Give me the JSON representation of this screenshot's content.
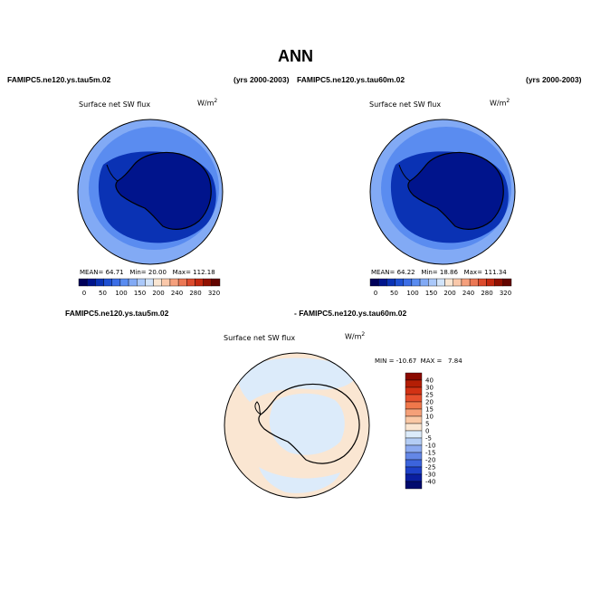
{
  "page": {
    "title": "ANN"
  },
  "panels": [
    {
      "case_left": "FAMIPC5.ne120.ys.tau5m.02",
      "case_right": "(yrs 2000-2003)",
      "subtitle": "Surface net SW flux",
      "units": "W/m",
      "units_exp": "2",
      "stats": {
        "mean_label": "MEAN=",
        "mean": "64.71",
        "min_label": "Min=",
        "min": "20.00",
        "max_label": "Max=",
        "max": "112.18"
      }
    },
    {
      "case_left": "FAMIPC5.ne120.ys.tau60m.02",
      "case_right": "(yrs 2000-2003)",
      "subtitle": "Surface net SW flux",
      "units": "W/m",
      "units_exp": "2",
      "stats": {
        "mean_label": "MEAN=",
        "mean": "64.22",
        "min_label": "Min=",
        "min": "18.86",
        "max_label": "Max=",
        "max": "111.34"
      }
    },
    {
      "case_left": "FAMIPC5.ne120.ys.tau5m.02",
      "case_right": "- FAMIPC5.ne120.ys.tau60m.02",
      "subtitle": "Surface net SW flux",
      "units": "W/m",
      "units_exp": "2",
      "minmax": "MIN = -10.67  MAX =   7.84"
    }
  ],
  "colorbar_abs": {
    "labels": [
      "0",
      "50",
      "100",
      "150",
      "200",
      "240",
      "280",
      "320"
    ],
    "colors": [
      "#00005a",
      "#00148c",
      "#0a32b4",
      "#1e50d2",
      "#3c6ee6",
      "#5a8cf0",
      "#82aaf5",
      "#aac8fa",
      "#d2e4fa",
      "#fae6d2",
      "#fac8aa",
      "#f5a07d",
      "#eb7855",
      "#dc4b2d",
      "#c3280f",
      "#911000",
      "#640500"
    ]
  },
  "colorbar_diff": {
    "labels": [
      "40",
      "30",
      "25",
      "20",
      "15",
      "10",
      "5",
      "0",
      "-5",
      "-10",
      "-15",
      "-20",
      "-25",
      "-30",
      "-40"
    ],
    "colors": [
      "#8b0a00",
      "#b41e05",
      "#d23214",
      "#e6502d",
      "#f0784b",
      "#f5a078",
      "#fac8a5",
      "#fae6d2",
      "#dcebfa",
      "#b4cdf5",
      "#8caaf0",
      "#6487e6",
      "#3c64dc",
      "#1e41c8",
      "#0a1ea0",
      "#000a6e"
    ]
  },
  "map_colors": {
    "ocean_outer": "#82aaf5",
    "ocean_mid": "#5a8cf0",
    "ice": "#0a32b4",
    "ice_deep": "#00148c",
    "diff_pos": "#fae6d2",
    "diff_neg": "#dcebfa"
  }
}
